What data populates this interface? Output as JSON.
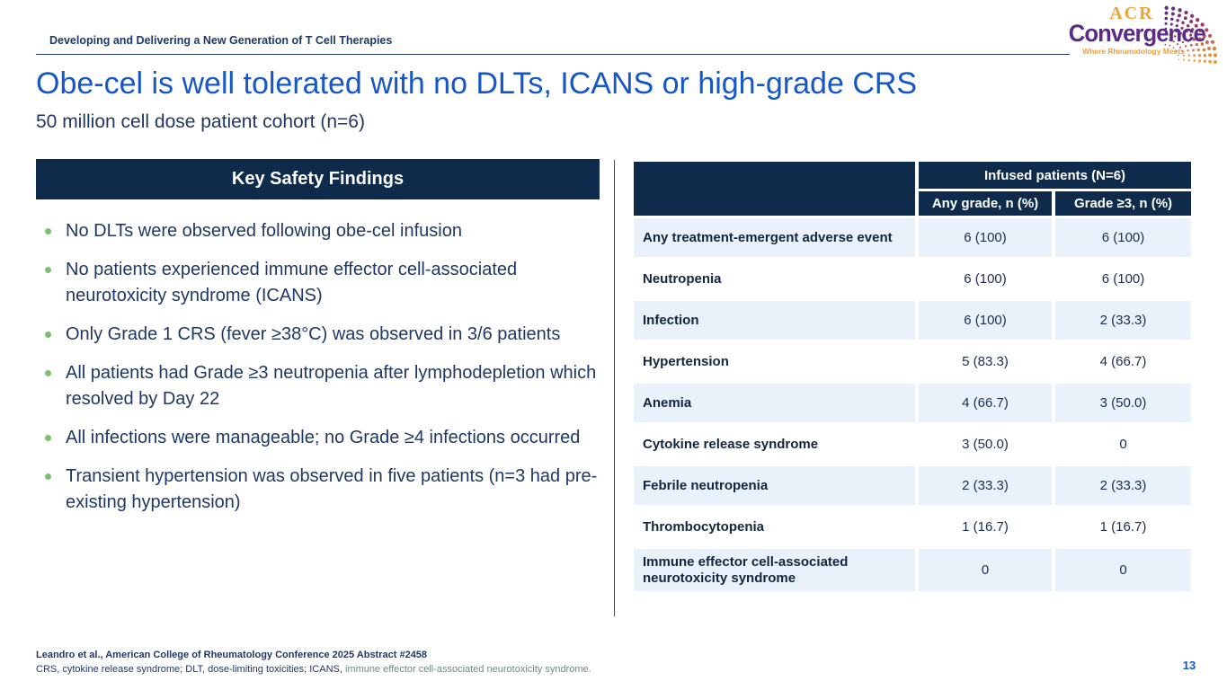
{
  "header": {
    "eyebrow": "Developing and Delivering a New Generation of T Cell Therapies",
    "logo": {
      "acr": "ACR",
      "convergence": "Convergence",
      "tagline": "Where Rheumatology Meets"
    }
  },
  "title": "Obe-cel is well tolerated with no DLTs, ICANS or high-grade CRS",
  "subtitle": "50 million cell dose patient cohort (n=6)",
  "key_findings": {
    "heading": "Key Safety Findings",
    "bullets": [
      "No DLTs were observed following obe-cel infusion",
      "No patients experienced immune effector cell-associated neurotoxicity syndrome (ICANS)",
      "Only Grade 1 CRS (fever ≥38°C) was observed in 3/6 patients",
      "All patients had Grade ≥3 neutropenia after lymphodepletion which resolved by Day 22",
      "All infections were manageable; no Grade ≥4 infections occurred",
      "Transient hypertension was observed in five patients (n=3 had pre-existing hypertension)"
    ]
  },
  "table": {
    "group_header": "Infused patients (N=6)",
    "columns": [
      "Any grade, n (%)",
      "Grade ≥3, n (%)"
    ],
    "rows": [
      {
        "label": "Any treatment-emergent adverse event",
        "any_grade": "6 (100)",
        "grade3": "6 (100)"
      },
      {
        "label": "Neutropenia",
        "any_grade": "6 (100)",
        "grade3": "6 (100)"
      },
      {
        "label": "Infection",
        "any_grade": "6 (100)",
        "grade3": "2 (33.3)"
      },
      {
        "label": "Hypertension",
        "any_grade": "5 (83.3)",
        "grade3": "4 (66.7)"
      },
      {
        "label": "Anemia",
        "any_grade": "4 (66.7)",
        "grade3": "3 (50.0)"
      },
      {
        "label": "Cytokine release syndrome",
        "any_grade": "3 (50.0)",
        "grade3": "0"
      },
      {
        "label": "Febrile neutropenia",
        "any_grade": "2 (33.3)",
        "grade3": "2 (33.3)"
      },
      {
        "label": "Thrombocytopenia",
        "any_grade": "1 (16.7)",
        "grade3": "1 (16.7)"
      },
      {
        "label": "Immune effector cell-associated neurotoxicity syndrome",
        "any_grade": "0",
        "grade3": "0"
      }
    ]
  },
  "footer": {
    "citation": "Leandro et al., American College of Rheumatology Conference 2025 Abstract #2458",
    "abbreviations_navy": "CRS, cytokine release syndrome; DLT, dose-limiting toxicities; ICANS, ",
    "abbreviations_green": "immune effector cell-associated neurotoxicity syndrome.",
    "page_number": "13"
  },
  "colors": {
    "header_navy": "#0f2b4c",
    "text_navy": "#1f3864",
    "title_blue": "#1557c6",
    "row_blue": "#e9f1fb",
    "bullet_green": "#7fbf72",
    "logo_purple": "#5b2c86",
    "logo_orange": "#eaa63c",
    "abbrev_green": "#6f8d7a"
  }
}
